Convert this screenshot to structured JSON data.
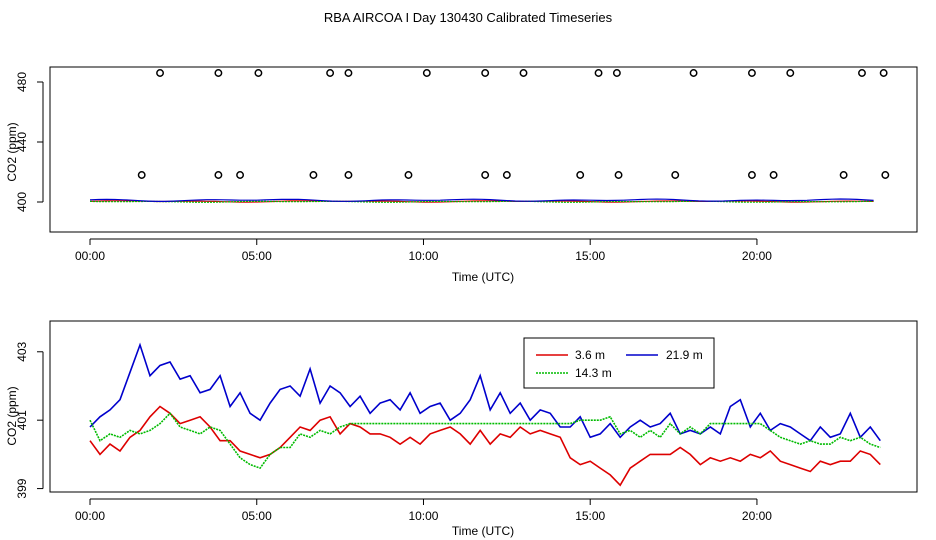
{
  "title": "RBA AIRCOA I  Day 130430  Calibrated Timeseries",
  "colors": {
    "c36": "#dd0000",
    "c143": "#00bb00",
    "c219": "#0000cc",
    "axis": "#000000"
  },
  "chart_data": [
    {
      "type": "scatter",
      "xlabel": "Time (UTC)",
      "ylabel": "CO2 (ppm)",
      "xlim": [
        -1.2,
        24.8
      ],
      "ylim": [
        380,
        490
      ],
      "xticks": [
        0,
        5,
        10,
        15,
        20
      ],
      "xtick_labels": [
        "00:00",
        "05:00",
        "10:00",
        "15:00",
        "20:00"
      ],
      "yticks": [
        400,
        440,
        480
      ],
      "ytick_labels": [
        "400",
        "440",
        "480"
      ],
      "outliers_high": {
        "y": 486,
        "x": [
          2.1,
          3.85,
          5.05,
          7.2,
          7.75,
          10.1,
          11.85,
          13.0,
          15.25,
          15.8,
          18.1,
          19.85,
          21.0,
          23.15,
          23.8
        ]
      },
      "outliers_mid": {
        "y": 418,
        "x": [
          1.55,
          3.85,
          4.5,
          6.7,
          7.75,
          9.55,
          11.85,
          12.5,
          14.7,
          15.85,
          17.55,
          19.85,
          20.5,
          22.6,
          23.85
        ]
      },
      "series": [
        {
          "name": "3.6 m",
          "color_key": "c36",
          "center": 400.4,
          "amp": 0.5
        },
        {
          "name": "14.3 m",
          "color_key": "c143",
          "center": 400.2,
          "amp": 0.4
        },
        {
          "name": "21.9 m",
          "color_key": "c219",
          "center": 401.2,
          "amp": 0.8
        }
      ]
    },
    {
      "type": "line",
      "xlabel": "Time (UTC)",
      "ylabel": "CO2 (ppm)",
      "xlim": [
        -1.2,
        24.8
      ],
      "ylim": [
        398.9,
        403.9
      ],
      "xticks": [
        0,
        5,
        10,
        15,
        20
      ],
      "xtick_labels": [
        "00:00",
        "05:00",
        "10:00",
        "15:00",
        "20:00"
      ],
      "yticks": [
        399,
        401,
        403
      ],
      "ytick_labels": [
        "399",
        "401",
        "403"
      ],
      "legend": {
        "position": "top-right",
        "entries": [
          "3.6 m",
          "14.3 m",
          "21.9 m"
        ]
      },
      "series": [
        {
          "name": "3.6 m",
          "color_key": "c36",
          "x": [
            0,
            0.3,
            0.6,
            0.9,
            1.2,
            1.5,
            1.8,
            2.1,
            2.4,
            2.7,
            3.0,
            3.3,
            3.6,
            3.9,
            4.2,
            4.5,
            4.8,
            5.1,
            5.4,
            5.7,
            6.0,
            6.3,
            6.6,
            6.9,
            7.2,
            7.5,
            7.8,
            8.1,
            8.4,
            8.7,
            9.0,
            9.3,
            9.6,
            9.9,
            10.2,
            10.5,
            10.8,
            11.1,
            11.4,
            11.7,
            12.0,
            12.3,
            12.6,
            12.9,
            13.2,
            13.5,
            13.8,
            14.1,
            14.4,
            14.7,
            15.0,
            15.3,
            15.6,
            15.9,
            16.2,
            16.5,
            16.8,
            17.1,
            17.4,
            17.7,
            18.0,
            18.3,
            18.6,
            18.9,
            19.2,
            19.5,
            19.8,
            20.1,
            20.4,
            20.7,
            21.0,
            21.3,
            21.6,
            21.9,
            22.2,
            22.5,
            22.8,
            23.1,
            23.4,
            23.7
          ],
          "y": [
            400.4,
            400.0,
            400.3,
            400.1,
            400.5,
            400.7,
            401.1,
            401.4,
            401.2,
            400.9,
            401.0,
            401.1,
            400.8,
            400.4,
            400.4,
            400.1,
            400.0,
            399.9,
            400.0,
            400.2,
            400.5,
            400.8,
            400.7,
            401.0,
            401.1,
            400.6,
            400.9,
            400.8,
            400.6,
            400.6,
            400.5,
            400.3,
            400.5,
            400.3,
            400.6,
            400.7,
            400.8,
            400.6,
            400.3,
            400.7,
            400.3,
            400.6,
            400.5,
            400.8,
            400.6,
            400.7,
            400.6,
            400.5,
            399.9,
            399.7,
            399.8,
            399.6,
            399.4,
            399.1,
            399.6,
            399.8,
            400.0,
            400.0,
            400.0,
            400.2,
            400.0,
            399.7,
            399.9,
            399.8,
            399.9,
            399.8,
            400.0,
            399.9,
            400.1,
            399.8,
            399.7,
            399.6,
            399.5,
            399.8,
            399.7,
            399.8,
            399.8,
            400.1,
            400.0,
            399.7
          ]
        },
        {
          "name": "14.3 m",
          "color_key": "c143",
          "x": [
            0,
            0.3,
            0.6,
            0.9,
            1.2,
            1.5,
            1.8,
            2.1,
            2.4,
            2.7,
            3.0,
            3.3,
            3.6,
            3.9,
            4.2,
            4.5,
            4.8,
            5.1,
            5.4,
            5.7,
            6.0,
            6.3,
            6.6,
            6.9,
            7.2,
            7.5,
            7.8,
            8.1,
            8.4,
            8.7,
            9.0,
            9.3,
            9.6,
            9.9,
            10.2,
            10.5,
            10.8,
            11.1,
            11.4,
            11.7,
            12.0,
            12.3,
            12.6,
            12.9,
            13.2,
            13.5,
            13.8,
            14.1,
            14.4,
            14.7,
            15.0,
            15.3,
            15.6,
            15.9,
            16.2,
            16.5,
            16.8,
            17.1,
            17.4,
            17.7,
            18.0,
            18.3,
            18.6,
            18.9,
            19.2,
            19.5,
            19.8,
            20.1,
            20.4,
            20.7,
            21.0,
            21.3,
            21.6,
            21.9,
            22.2,
            22.5,
            22.8,
            23.1,
            23.4,
            23.7
          ],
          "y": [
            401.0,
            400.4,
            400.6,
            400.5,
            400.7,
            400.6,
            400.7,
            400.9,
            401.2,
            400.8,
            400.7,
            400.6,
            400.8,
            400.7,
            400.3,
            399.9,
            399.7,
            399.6,
            400.0,
            400.2,
            400.2,
            400.6,
            400.5,
            400.7,
            400.6,
            400.8,
            400.9,
            400.9,
            400.9,
            400.9,
            400.9,
            400.9,
            400.9,
            400.9,
            400.9,
            400.9,
            400.9,
            400.9,
            400.9,
            400.9,
            400.9,
            400.9,
            400.9,
            400.9,
            400.9,
            400.9,
            400.9,
            400.9,
            400.9,
            401.0,
            401.0,
            401.0,
            401.1,
            400.6,
            400.7,
            400.5,
            400.7,
            400.5,
            400.9,
            400.6,
            400.8,
            400.6,
            400.9,
            400.9,
            400.9,
            400.9,
            400.9,
            400.9,
            400.7,
            400.5,
            400.4,
            400.3,
            400.4,
            400.3,
            400.3,
            400.5,
            400.4,
            400.5,
            400.3,
            400.2
          ]
        },
        {
          "name": "21.9 m",
          "color_key": "c219",
          "x": [
            0,
            0.3,
            0.6,
            0.9,
            1.2,
            1.5,
            1.8,
            2.1,
            2.4,
            2.7,
            3.0,
            3.3,
            3.6,
            3.9,
            4.2,
            4.5,
            4.8,
            5.1,
            5.4,
            5.7,
            6.0,
            6.3,
            6.6,
            6.9,
            7.2,
            7.5,
            7.8,
            8.1,
            8.4,
            8.7,
            9.0,
            9.3,
            9.6,
            9.9,
            10.2,
            10.5,
            10.8,
            11.1,
            11.4,
            11.7,
            12.0,
            12.3,
            12.6,
            12.9,
            13.2,
            13.5,
            13.8,
            14.1,
            14.4,
            14.7,
            15.0,
            15.3,
            15.6,
            15.9,
            16.2,
            16.5,
            16.8,
            17.1,
            17.4,
            17.7,
            18.0,
            18.3,
            18.6,
            18.9,
            19.2,
            19.5,
            19.8,
            20.1,
            20.4,
            20.7,
            21.0,
            21.3,
            21.6,
            21.9,
            22.2,
            22.5,
            22.8,
            23.1,
            23.4,
            23.7
          ],
          "y": [
            400.8,
            401.1,
            401.3,
            401.6,
            402.4,
            403.2,
            402.3,
            402.6,
            402.7,
            402.2,
            402.3,
            401.8,
            401.9,
            402.3,
            401.4,
            401.8,
            401.2,
            401.0,
            401.5,
            401.9,
            402.0,
            401.7,
            402.5,
            401.5,
            402.0,
            401.8,
            401.4,
            401.7,
            401.2,
            401.5,
            401.6,
            401.3,
            401.8,
            401.2,
            401.4,
            401.5,
            401.0,
            401.2,
            401.6,
            402.3,
            401.3,
            401.8,
            401.2,
            401.5,
            401.0,
            401.3,
            401.2,
            400.8,
            400.8,
            401.1,
            400.5,
            400.6,
            400.9,
            400.5,
            400.8,
            401.0,
            400.8,
            400.9,
            401.2,
            400.6,
            400.7,
            400.6,
            400.8,
            400.6,
            401.4,
            401.6,
            400.8,
            401.2,
            400.7,
            400.9,
            400.8,
            400.6,
            400.4,
            400.8,
            400.5,
            400.6,
            401.2,
            400.5,
            400.8,
            400.4
          ]
        }
      ]
    }
  ]
}
